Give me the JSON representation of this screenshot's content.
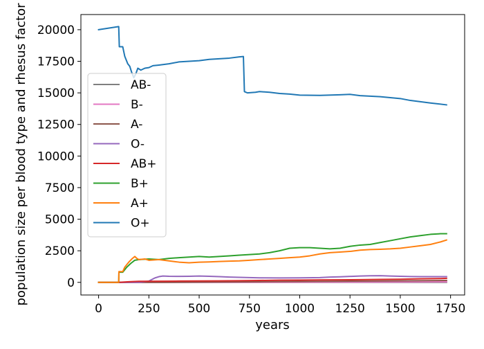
{
  "chart_data": {
    "type": "line",
    "xlabel": "years",
    "ylabel": "population size per blood type and rhesus factor",
    "xlim": [
      -88,
      1820
    ],
    "ylim": [
      -1000,
      21200
    ],
    "xticks": [
      0,
      250,
      500,
      750,
      1000,
      1250,
      1500,
      1750
    ],
    "yticks": [
      0,
      2500,
      5000,
      7500,
      10000,
      12500,
      15000,
      17500,
      20000
    ],
    "legend_placement": "center-left",
    "legend_order": [
      "AB-",
      "B-",
      "A-",
      "O-",
      "AB+",
      "B+",
      "A+",
      "O+"
    ],
    "series": [
      {
        "name": "O+",
        "color": "#1f77b4",
        "points": [
          [
            0,
            20000
          ],
          [
            100,
            20250
          ],
          [
            103,
            18650
          ],
          [
            120,
            18650
          ],
          [
            130,
            17900
          ],
          [
            145,
            17300
          ],
          [
            155,
            17100
          ],
          [
            165,
            16600
          ],
          [
            175,
            16200
          ],
          [
            185,
            16500
          ],
          [
            195,
            16950
          ],
          [
            210,
            16800
          ],
          [
            230,
            16950
          ],
          [
            250,
            17000
          ],
          [
            270,
            17150
          ],
          [
            300,
            17200
          ],
          [
            350,
            17300
          ],
          [
            400,
            17450
          ],
          [
            450,
            17500
          ],
          [
            500,
            17550
          ],
          [
            550,
            17650
          ],
          [
            600,
            17700
          ],
          [
            650,
            17750
          ],
          [
            700,
            17850
          ],
          [
            720,
            17880
          ],
          [
            725,
            15100
          ],
          [
            740,
            15000
          ],
          [
            780,
            15050
          ],
          [
            800,
            15100
          ],
          [
            850,
            15050
          ],
          [
            900,
            14950
          ],
          [
            950,
            14900
          ],
          [
            1000,
            14820
          ],
          [
            1100,
            14800
          ],
          [
            1200,
            14850
          ],
          [
            1250,
            14880
          ],
          [
            1300,
            14780
          ],
          [
            1400,
            14700
          ],
          [
            1500,
            14550
          ],
          [
            1550,
            14400
          ],
          [
            1600,
            14300
          ],
          [
            1650,
            14200
          ],
          [
            1730,
            14050
          ]
        ]
      },
      {
        "name": "A+",
        "color": "#ff7f0e",
        "points": [
          [
            0,
            0
          ],
          [
            100,
            0
          ],
          [
            101,
            850
          ],
          [
            120,
            850
          ],
          [
            130,
            1200
          ],
          [
            150,
            1600
          ],
          [
            165,
            1850
          ],
          [
            180,
            2050
          ],
          [
            190,
            1900
          ],
          [
            200,
            1800
          ],
          [
            230,
            1850
          ],
          [
            250,
            1750
          ],
          [
            300,
            1800
          ],
          [
            350,
            1700
          ],
          [
            400,
            1600
          ],
          [
            450,
            1550
          ],
          [
            500,
            1600
          ],
          [
            550,
            1620
          ],
          [
            600,
            1650
          ],
          [
            650,
            1680
          ],
          [
            700,
            1700
          ],
          [
            750,
            1750
          ],
          [
            800,
            1800
          ],
          [
            850,
            1850
          ],
          [
            900,
            1900
          ],
          [
            950,
            1950
          ],
          [
            1000,
            2000
          ],
          [
            1050,
            2100
          ],
          [
            1100,
            2250
          ],
          [
            1150,
            2350
          ],
          [
            1200,
            2400
          ],
          [
            1250,
            2450
          ],
          [
            1300,
            2550
          ],
          [
            1350,
            2600
          ],
          [
            1400,
            2620
          ],
          [
            1450,
            2650
          ],
          [
            1500,
            2700
          ],
          [
            1550,
            2800
          ],
          [
            1600,
            2900
          ],
          [
            1650,
            3000
          ],
          [
            1700,
            3200
          ],
          [
            1730,
            3350
          ]
        ]
      },
      {
        "name": "B+",
        "color": "#2ca02c",
        "points": [
          [
            0,
            0
          ],
          [
            100,
            0
          ],
          [
            101,
            800
          ],
          [
            120,
            800
          ],
          [
            140,
            1200
          ],
          [
            160,
            1500
          ],
          [
            180,
            1750
          ],
          [
            200,
            1800
          ],
          [
            250,
            1850
          ],
          [
            300,
            1800
          ],
          [
            350,
            1900
          ],
          [
            400,
            1950
          ],
          [
            450,
            2000
          ],
          [
            500,
            2050
          ],
          [
            550,
            2000
          ],
          [
            600,
            2050
          ],
          [
            650,
            2100
          ],
          [
            700,
            2150
          ],
          [
            750,
            2200
          ],
          [
            800,
            2250
          ],
          [
            850,
            2350
          ],
          [
            900,
            2500
          ],
          [
            950,
            2700
          ],
          [
            1000,
            2750
          ],
          [
            1050,
            2750
          ],
          [
            1100,
            2700
          ],
          [
            1150,
            2650
          ],
          [
            1200,
            2700
          ],
          [
            1250,
            2850
          ],
          [
            1300,
            2950
          ],
          [
            1350,
            3000
          ],
          [
            1400,
            3150
          ],
          [
            1450,
            3300
          ],
          [
            1500,
            3450
          ],
          [
            1550,
            3600
          ],
          [
            1600,
            3700
          ],
          [
            1650,
            3800
          ],
          [
            1700,
            3850
          ],
          [
            1730,
            3850
          ]
        ]
      },
      {
        "name": "AB+",
        "color": "#d62728",
        "points": [
          [
            0,
            0
          ],
          [
            100,
            0
          ],
          [
            150,
            50
          ],
          [
            200,
            80
          ],
          [
            300,
            90
          ],
          [
            400,
            100
          ],
          [
            500,
            110
          ],
          [
            600,
            120
          ],
          [
            700,
            130
          ],
          [
            800,
            150
          ],
          [
            900,
            170
          ],
          [
            1000,
            180
          ],
          [
            1100,
            190
          ],
          [
            1200,
            200
          ],
          [
            1300,
            210
          ],
          [
            1400,
            230
          ],
          [
            1500,
            250
          ],
          [
            1600,
            280
          ],
          [
            1700,
            300
          ],
          [
            1730,
            320
          ]
        ]
      },
      {
        "name": "O-",
        "color": "#9467bd",
        "points": [
          [
            0,
            0
          ],
          [
            100,
            0
          ],
          [
            200,
            0
          ],
          [
            250,
            100
          ],
          [
            280,
            350
          ],
          [
            300,
            450
          ],
          [
            320,
            500
          ],
          [
            350,
            480
          ],
          [
            400,
            470
          ],
          [
            450,
            480
          ],
          [
            500,
            500
          ],
          [
            550,
            480
          ],
          [
            600,
            450
          ],
          [
            650,
            420
          ],
          [
            700,
            400
          ],
          [
            750,
            380
          ],
          [
            800,
            360
          ],
          [
            900,
            350
          ],
          [
            1000,
            360
          ],
          [
            1100,
            380
          ],
          [
            1150,
            420
          ],
          [
            1200,
            440
          ],
          [
            1250,
            470
          ],
          [
            1300,
            500
          ],
          [
            1350,
            520
          ],
          [
            1400,
            530
          ],
          [
            1450,
            500
          ],
          [
            1500,
            480
          ],
          [
            1550,
            460
          ],
          [
            1600,
            450
          ],
          [
            1650,
            450
          ],
          [
            1700,
            450
          ],
          [
            1730,
            450
          ]
        ]
      },
      {
        "name": "A-",
        "color": "#8c564b",
        "points": [
          [
            0,
            0
          ],
          [
            300,
            0
          ],
          [
            500,
            20
          ],
          [
            800,
            50
          ],
          [
            1000,
            70
          ],
          [
            1200,
            90
          ],
          [
            1400,
            110
          ],
          [
            1600,
            130
          ],
          [
            1730,
            150
          ]
        ]
      },
      {
        "name": "B-",
        "color": "#e377c2",
        "points": [
          [
            0,
            0
          ],
          [
            500,
            0
          ],
          [
            900,
            10
          ],
          [
            1200,
            20
          ],
          [
            1500,
            30
          ],
          [
            1730,
            40
          ]
        ]
      },
      {
        "name": "AB-",
        "color": "#7f7f7f",
        "points": [
          [
            0,
            0
          ],
          [
            1730,
            0
          ]
        ]
      }
    ]
  }
}
